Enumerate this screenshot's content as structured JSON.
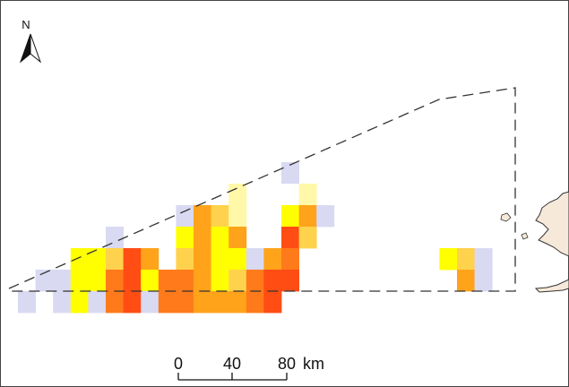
{
  "north_arrow": {
    "label": "N"
  },
  "scale_bar": {
    "ticks": [
      "0",
      "40",
      "80"
    ],
    "unit": "km"
  },
  "colors": {
    "lavender": "#d9d9f2",
    "pale_yellow": "#fff8a8",
    "yellow": "#ffff00",
    "gold": "#ffd24d",
    "orange": "#ffa31a",
    "dark_orange": "#ff7a1a",
    "red_orange": "#ff4d14",
    "boundary": "#333333",
    "land": "#f7e9d9"
  },
  "grid_cells": [
    {
      "col": 0,
      "row": 5,
      "level": "lavender"
    },
    {
      "col": 1,
      "row": 4,
      "level": "lavender"
    },
    {
      "col": 2,
      "row": 4,
      "level": "lavender"
    },
    {
      "col": 2,
      "row": 5,
      "level": "lavender"
    },
    {
      "col": 3,
      "row": 3,
      "level": "yellow"
    },
    {
      "col": 3,
      "row": 4,
      "level": "yellow"
    },
    {
      "col": 3,
      "row": 5,
      "level": "yellow"
    },
    {
      "col": 4,
      "row": 3,
      "level": "yellow"
    },
    {
      "col": 4,
      "row": 4,
      "level": "yellow"
    },
    {
      "col": 4,
      "row": 5,
      "level": "lavender"
    },
    {
      "col": 5,
      "row": 2,
      "level": "lavender"
    },
    {
      "col": 5,
      "row": 3,
      "level": "gold"
    },
    {
      "col": 5,
      "row": 4,
      "level": "dark_orange"
    },
    {
      "col": 5,
      "row": 5,
      "level": "dark_orange"
    },
    {
      "col": 6,
      "row": 3,
      "level": "red_orange"
    },
    {
      "col": 6,
      "row": 4,
      "level": "red_orange"
    },
    {
      "col": 6,
      "row": 5,
      "level": "red_orange"
    },
    {
      "col": 7,
      "row": 3,
      "level": "orange"
    },
    {
      "col": 7,
      "row": 4,
      "level": "yellow"
    },
    {
      "col": 7,
      "row": 5,
      "level": "lavender"
    },
    {
      "col": 8,
      "row": 4,
      "level": "dark_orange"
    },
    {
      "col": 8,
      "row": 5,
      "level": "dark_orange"
    },
    {
      "col": 9,
      "row": 1,
      "level": "lavender"
    },
    {
      "col": 9,
      "row": 2,
      "level": "yellow"
    },
    {
      "col": 9,
      "row": 3,
      "level": "gold"
    },
    {
      "col": 9,
      "row": 4,
      "level": "dark_orange"
    },
    {
      "col": 9,
      "row": 5,
      "level": "dark_orange"
    },
    {
      "col": 10,
      "row": 1,
      "level": "orange"
    },
    {
      "col": 10,
      "row": 2,
      "level": "orange"
    },
    {
      "col": 10,
      "row": 3,
      "level": "orange"
    },
    {
      "col": 10,
      "row": 4,
      "level": "orange"
    },
    {
      "col": 10,
      "row": 5,
      "level": "orange"
    },
    {
      "col": 11,
      "row": 1,
      "level": "gold"
    },
    {
      "col": 11,
      "row": 2,
      "level": "yellow"
    },
    {
      "col": 11,
      "row": 3,
      "level": "yellow"
    },
    {
      "col": 11,
      "row": 4,
      "level": "yellow"
    },
    {
      "col": 11,
      "row": 5,
      "level": "orange"
    },
    {
      "col": 12,
      "row": 0,
      "level": "pale_yellow"
    },
    {
      "col": 12,
      "row": 1,
      "level": "pale_yellow"
    },
    {
      "col": 12,
      "row": 2,
      "level": "orange"
    },
    {
      "col": 12,
      "row": 3,
      "level": "yellow"
    },
    {
      "col": 12,
      "row": 4,
      "level": "gold"
    },
    {
      "col": 12,
      "row": 5,
      "level": "orange"
    },
    {
      "col": 13,
      "row": 3,
      "level": "lavender"
    },
    {
      "col": 13,
      "row": 4,
      "level": "dark_orange"
    },
    {
      "col": 13,
      "row": 5,
      "level": "dark_orange"
    },
    {
      "col": 14,
      "row": 3,
      "level": "orange"
    },
    {
      "col": 14,
      "row": 4,
      "level": "red_orange"
    },
    {
      "col": 14,
      "row": 5,
      "level": "red_orange"
    },
    {
      "col": 15,
      "row": -1,
      "level": "lavender"
    },
    {
      "col": 15,
      "row": 0,
      "level": "white"
    },
    {
      "col": 15,
      "row": 1,
      "level": "yellow"
    },
    {
      "col": 15,
      "row": 2,
      "level": "red_orange"
    },
    {
      "col": 15,
      "row": 3,
      "level": "dark_orange"
    },
    {
      "col": 15,
      "row": 4,
      "level": "red_orange"
    },
    {
      "col": 16,
      "row": 0,
      "level": "pale_yellow"
    },
    {
      "col": 16,
      "row": 1,
      "level": "orange"
    },
    {
      "col": 16,
      "row": 2,
      "level": "gold"
    },
    {
      "col": 17,
      "row": 1,
      "level": "lavender"
    },
    {
      "col": 24,
      "row": 3,
      "level": "yellow"
    },
    {
      "col": 25,
      "row": 3,
      "level": "gold"
    },
    {
      "col": 25,
      "row": 4,
      "level": "orange"
    },
    {
      "col": 26,
      "row": 3,
      "level": "lavender"
    },
    {
      "col": 26,
      "row": 4,
      "level": "lavender"
    }
  ]
}
